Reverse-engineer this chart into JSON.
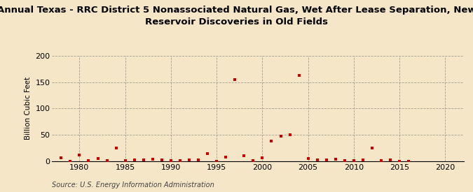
{
  "title": "Annual Texas - RRC District 5 Nonassociated Natural Gas, Wet After Lease Separation, New\nReservoir Discoveries in Old Fields",
  "ylabel": "Billion Cubic Feet",
  "source": "Source: U.S. Energy Information Administration",
  "background_color": "#f5e6c8",
  "plot_bg_color": "#f5e6c8",
  "marker_color": "#cc0000",
  "xlim": [
    1977,
    2022
  ],
  "ylim": [
    0,
    200
  ],
  "yticks": [
    0,
    50,
    100,
    150,
    200
  ],
  "xticks": [
    1980,
    1985,
    1990,
    1995,
    2000,
    2005,
    2010,
    2015,
    2020
  ],
  "years": [
    1978,
    1979,
    1980,
    1981,
    1982,
    1983,
    1984,
    1985,
    1986,
    1987,
    1988,
    1989,
    1990,
    1991,
    1992,
    1993,
    1994,
    1995,
    1996,
    1997,
    1998,
    1999,
    2000,
    2001,
    2002,
    2003,
    2004,
    2005,
    2006,
    2007,
    2008,
    2009,
    2010,
    2011,
    2012,
    2013,
    2014,
    2015,
    2016
  ],
  "values": [
    7,
    0.5,
    12,
    1,
    5,
    1,
    25,
    1,
    2,
    3,
    4,
    2,
    1,
    1,
    2,
    3,
    14,
    0.5,
    8,
    155,
    10,
    1,
    6,
    38,
    48,
    50,
    163,
    5,
    3,
    2,
    4,
    1,
    1,
    2,
    25,
    1,
    2,
    0.5,
    0.5
  ],
  "title_fontsize": 9.5,
  "ylabel_fontsize": 7.5,
  "tick_fontsize": 8,
  "source_fontsize": 7
}
